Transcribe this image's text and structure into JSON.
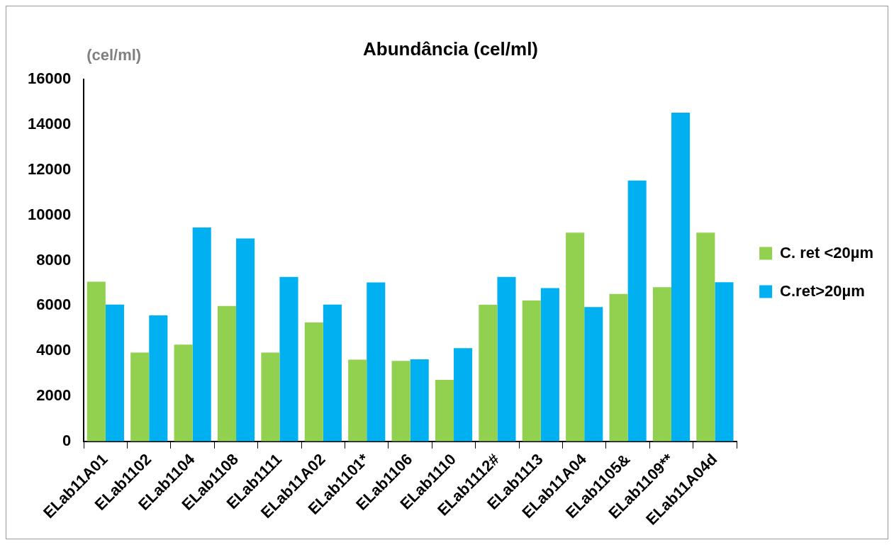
{
  "chart_data": {
    "type": "bar",
    "title": "Abundância (cel/ml)",
    "ylabel": "(cel/ml)",
    "categories": [
      "ELab11A01",
      "ELab1102",
      "ELab1104",
      "ELab1108",
      "ELab1111",
      "ELab11A02",
      "ELab1101*",
      "ELab1106",
      "ELab1110",
      "ELab1112#",
      "ELab1113",
      "ELab11A04",
      "ELab1105&",
      "ELab1109**",
      "ELab11A04d"
    ],
    "series": [
      {
        "name": "C. ret <20µm",
        "color": "#92d050",
        "values": [
          7060,
          3930,
          4280,
          5990,
          3930,
          5260,
          3610,
          3560,
          2720,
          6040,
          6230,
          9230,
          6520,
          6820,
          9230
        ]
      },
      {
        "name": "C.ret>20µm",
        "color": "#00b0f0",
        "values": [
          6050,
          5570,
          9460,
          8970,
          7270,
          6050,
          7030,
          3630,
          4120,
          7270,
          6780,
          5940,
          11530,
          14530,
          7040
        ]
      }
    ],
    "ylim": [
      0,
      16000
    ],
    "yticks": [
      0,
      2000,
      4000,
      6000,
      8000,
      10000,
      12000,
      14000,
      16000
    ],
    "grid": false,
    "legend": "right"
  }
}
